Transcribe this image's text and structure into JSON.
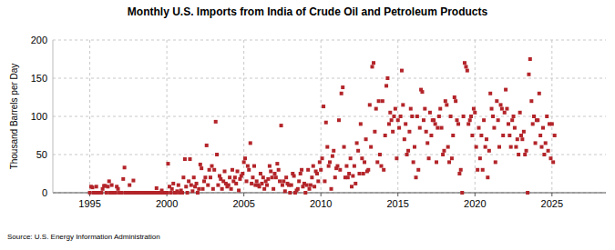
{
  "chart_data": {
    "type": "scatter",
    "title": "Monthly U.S. Imports from India of Crude Oil and Petroleum Products",
    "y_label": "Thousand Barrels per Day",
    "source": "Source: U.S. Energy Information Administration",
    "color": "#b3252a",
    "marker": "square",
    "grid": true,
    "xlim": [
      1992.6,
      2028.5
    ],
    "xticks": [
      1995,
      2000,
      2005,
      2010,
      2015,
      2020,
      2025
    ],
    "ylim": [
      0,
      200
    ],
    "yticks": [
      0,
      50,
      100,
      150,
      200
    ],
    "x": [
      1995.0,
      1995.08,
      1995.17,
      1995.25,
      1995.33,
      1995.42,
      1995.5,
      1995.58,
      1995.67,
      1995.75,
      1995.83,
      1995.92,
      1996.0,
      1996.08,
      1996.17,
      1996.25,
      1996.33,
      1996.42,
      1996.5,
      1996.58,
      1996.67,
      1996.75,
      1996.83,
      1996.92,
      1997.0,
      1997.08,
      1997.17,
      1997.25,
      1997.33,
      1997.42,
      1997.5,
      1997.58,
      1997.67,
      1997.75,
      1997.83,
      1997.92,
      1998.0,
      1998.08,
      1998.17,
      1998.25,
      1998.33,
      1998.42,
      1998.5,
      1998.58,
      1998.67,
      1998.75,
      1998.83,
      1998.92,
      1999.0,
      1999.08,
      1999.17,
      1999.25,
      1999.33,
      1999.42,
      1999.5,
      1999.58,
      1999.67,
      1999.75,
      1999.83,
      1999.92,
      2000.0,
      2000.08,
      2000.17,
      2000.25,
      2000.33,
      2000.42,
      2000.5,
      2000.58,
      2000.67,
      2000.75,
      2000.83,
      2000.92,
      2001.0,
      2001.08,
      2001.17,
      2001.25,
      2001.33,
      2001.42,
      2001.5,
      2001.58,
      2001.67,
      2001.75,
      2001.83,
      2001.92,
      2002.0,
      2002.08,
      2002.17,
      2002.25,
      2002.33,
      2002.42,
      2002.5,
      2002.58,
      2002.67,
      2002.75,
      2002.83,
      2002.92,
      2003.0,
      2003.08,
      2003.17,
      2003.25,
      2003.33,
      2003.42,
      2003.5,
      2003.58,
      2003.67,
      2003.75,
      2003.83,
      2003.92,
      2004.0,
      2004.08,
      2004.17,
      2004.25,
      2004.33,
      2004.42,
      2004.5,
      2004.58,
      2004.67,
      2004.75,
      2004.83,
      2004.92,
      2005.0,
      2005.08,
      2005.17,
      2005.25,
      2005.33,
      2005.42,
      2005.5,
      2005.58,
      2005.67,
      2005.75,
      2005.83,
      2005.92,
      2006.0,
      2006.08,
      2006.17,
      2006.25,
      2006.33,
      2006.42,
      2006.5,
      2006.58,
      2006.67,
      2006.75,
      2006.83,
      2006.92,
      2007.0,
      2007.08,
      2007.17,
      2007.25,
      2007.33,
      2007.42,
      2007.5,
      2007.58,
      2007.67,
      2007.75,
      2007.83,
      2007.92,
      2008.0,
      2008.08,
      2008.17,
      2008.25,
      2008.33,
      2008.42,
      2008.5,
      2008.58,
      2008.67,
      2008.75,
      2008.83,
      2008.92,
      2009.0,
      2009.08,
      2009.17,
      2009.25,
      2009.33,
      2009.42,
      2009.5,
      2009.58,
      2009.67,
      2009.75,
      2009.83,
      2009.92,
      2010.0,
      2010.08,
      2010.17,
      2010.25,
      2010.33,
      2010.42,
      2010.5,
      2010.58,
      2010.67,
      2010.75,
      2010.83,
      2010.92,
      2011.0,
      2011.08,
      2011.17,
      2011.25,
      2011.33,
      2011.42,
      2011.5,
      2011.58,
      2011.67,
      2011.75,
      2011.83,
      2011.92,
      2012.0,
      2012.08,
      2012.17,
      2012.25,
      2012.33,
      2012.42,
      2012.5,
      2012.58,
      2012.67,
      2012.75,
      2012.83,
      2012.92,
      2013.0,
      2013.08,
      2013.17,
      2013.25,
      2013.33,
      2013.42,
      2013.5,
      2013.58,
      2013.67,
      2013.75,
      2013.83,
      2013.92,
      2014.0,
      2014.08,
      2014.17,
      2014.25,
      2014.33,
      2014.42,
      2014.5,
      2014.58,
      2014.67,
      2014.75,
      2014.83,
      2014.92,
      2015.0,
      2015.08,
      2015.17,
      2015.25,
      2015.33,
      2015.42,
      2015.5,
      2015.58,
      2015.67,
      2015.75,
      2015.83,
      2015.92,
      2016.0,
      2016.08,
      2016.17,
      2016.25,
      2016.33,
      2016.42,
      2016.5,
      2016.58,
      2016.67,
      2016.75,
      2016.83,
      2016.92,
      2017.0,
      2017.08,
      2017.17,
      2017.25,
      2017.33,
      2017.42,
      2017.5,
      2017.58,
      2017.67,
      2017.75,
      2017.83,
      2017.92,
      2018.0,
      2018.08,
      2018.17,
      2018.25,
      2018.33,
      2018.42,
      2018.5,
      2018.58,
      2018.67,
      2018.75,
      2018.83,
      2018.92,
      2019.0,
      2019.08,
      2019.17,
      2019.25,
      2019.33,
      2019.42,
      2019.5,
      2019.58,
      2019.67,
      2019.75,
      2019.83,
      2019.92,
      2020.0,
      2020.08,
      2020.17,
      2020.25,
      2020.33,
      2020.42,
      2020.5,
      2020.58,
      2020.67,
      2020.75,
      2020.83,
      2020.92,
      2021.0,
      2021.08,
      2021.17,
      2021.25,
      2021.33,
      2021.42,
      2021.5,
      2021.58,
      2021.67,
      2021.75,
      2021.83,
      2021.92,
      2022.0,
      2022.08,
      2022.17,
      2022.25,
      2022.33,
      2022.42,
      2022.5,
      2022.58,
      2022.67,
      2022.75,
      2022.83,
      2022.92,
      2023.0,
      2023.08,
      2023.17,
      2023.25,
      2023.33,
      2023.42,
      2023.5,
      2023.58,
      2023.67,
      2023.75,
      2023.83,
      2023.92,
      2024.0,
      2024.08,
      2024.17,
      2024.25,
      2024.33,
      2024.42,
      2024.5,
      2024.58,
      2024.67,
      2024.75,
      2024.83,
      2024.92,
      2025.0,
      2025.08,
      2025.17
    ],
    "values": [
      0,
      8,
      7,
      0,
      0,
      8,
      0,
      0,
      0,
      0,
      5,
      9,
      9,
      0,
      8,
      15,
      0,
      10,
      0,
      0,
      0,
      8,
      5,
      0,
      0,
      0,
      18,
      33,
      0,
      0,
      0,
      10,
      0,
      0,
      16,
      0,
      0,
      0,
      0,
      0,
      0,
      0,
      0,
      0,
      0,
      0,
      0,
      0,
      0,
      0,
      0,
      0,
      6,
      0,
      0,
      0,
      3,
      0,
      0,
      0,
      0,
      38,
      8,
      0,
      5,
      12,
      0,
      0,
      2,
      10,
      0,
      3,
      0,
      20,
      44,
      8,
      0,
      15,
      44,
      10,
      2,
      20,
      8,
      12,
      0,
      5,
      37,
      32,
      5,
      15,
      20,
      62,
      10,
      30,
      20,
      35,
      5,
      30,
      93,
      50,
      10,
      22,
      18,
      5,
      15,
      28,
      12,
      8,
      10,
      20,
      5,
      30,
      15,
      20,
      12,
      28,
      3,
      18,
      22,
      25,
      40,
      45,
      15,
      35,
      30,
      65,
      12,
      20,
      35,
      10,
      15,
      10,
      8,
      25,
      12,
      20,
      5,
      15,
      10,
      18,
      35,
      28,
      20,
      5,
      25,
      20,
      38,
      30,
      15,
      88,
      10,
      15,
      2,
      20,
      12,
      10,
      0,
      10,
      25,
      22,
      0,
      3,
      5,
      15,
      25,
      30,
      8,
      12,
      0,
      10,
      30,
      5,
      10,
      20,
      35,
      8,
      28,
      25,
      15,
      40,
      30,
      45,
      113,
      15,
      92,
      60,
      35,
      40,
      5,
      48,
      55,
      20,
      32,
      35,
      95,
      30,
      130,
      138,
      60,
      20,
      35,
      20,
      25,
      45,
      8,
      22,
      35,
      12,
      65,
      55,
      25,
      90,
      45,
      25,
      40,
      70,
      28,
      30,
      115,
      60,
      165,
      170,
      80,
      110,
      40,
      120,
      50,
      35,
      120,
      30,
      75,
      140,
      150,
      90,
      105,
      95,
      80,
      100,
      110,
      45,
      95,
      85,
      100,
      160,
      115,
      70,
      90,
      50,
      55,
      80,
      110,
      100,
      40,
      60,
      20,
      100,
      30,
      85,
      135,
      132,
      95,
      110,
      80,
      65,
      45,
      105,
      75,
      95,
      95,
      90,
      40,
      85,
      100,
      110,
      85,
      50,
      55,
      120,
      115,
      60,
      40,
      100,
      45,
      75,
      125,
      120,
      95,
      90,
      25,
      30,
      0,
      100,
      170,
      165,
      160,
      90,
      95,
      100,
      75,
      110,
      105,
      60,
      30,
      85,
      45,
      75,
      30,
      95,
      60,
      70,
      20,
      55,
      130,
      110,
      100,
      85,
      40,
      120,
      95,
      60,
      115,
      110,
      75,
      105,
      135,
      110,
      90,
      75,
      60,
      95,
      100,
      85,
      60,
      70,
      50,
      105,
      75,
      70,
      80,
      50,
      55,
      0,
      155,
      175,
      120,
      90,
      100,
      65,
      95,
      95,
      130,
      75,
      60,
      85,
      50,
      65,
      100,
      55,
      90,
      45,
      90,
      40,
      75
    ]
  }
}
